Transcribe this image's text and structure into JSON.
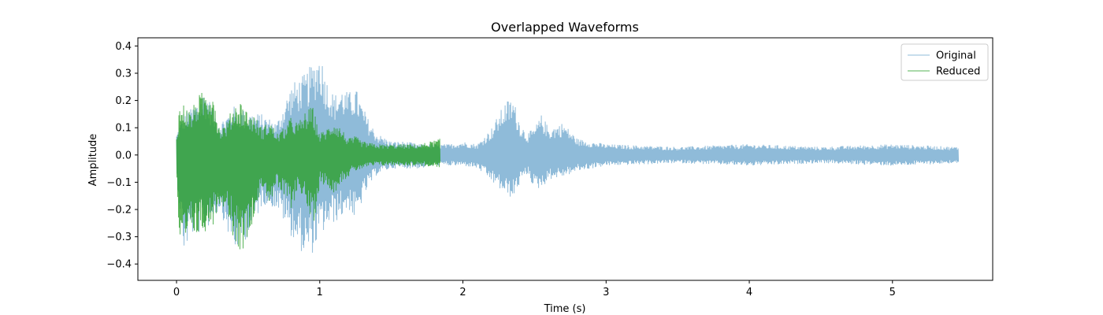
{
  "chart_data": {
    "type": "line",
    "title": "Overlapped Waveforms",
    "xlabel": "Time (s)",
    "ylabel": "Amplitude",
    "xlim": [
      -0.27,
      5.7
    ],
    "ylim": [
      -0.46,
      0.43
    ],
    "x_ticks": [
      0,
      1,
      2,
      3,
      4,
      5
    ],
    "y_ticks": [
      -0.4,
      -0.3,
      -0.2,
      -0.1,
      0.0,
      0.1,
      0.2,
      0.3,
      0.4
    ],
    "x_tick_labels": [
      "0",
      "1",
      "2",
      "3",
      "4",
      "5"
    ],
    "y_tick_labels": [
      "−0.4",
      "−0.3",
      "−0.2",
      "−0.1",
      "0.0",
      "0.1",
      "0.2",
      "0.3",
      "0.4"
    ],
    "grid": false,
    "legend": "top-right",
    "series": [
      {
        "name": "Original",
        "color": "#1f77b4",
        "opacity": 0.5,
        "x_range": [
          0,
          5.46
        ],
        "envelope": {
          "t": [
            0.0,
            0.05,
            0.1,
            0.2,
            0.3,
            0.4,
            0.5,
            0.6,
            0.7,
            0.8,
            0.85,
            0.9,
            0.95,
            1.0,
            1.05,
            1.1,
            1.15,
            1.2,
            1.25,
            1.3,
            1.35,
            1.4,
            1.5,
            1.6,
            1.7,
            1.8,
            1.9,
            2.0,
            2.1,
            2.2,
            2.3,
            2.35,
            2.4,
            2.45,
            2.5,
            2.55,
            2.6,
            2.7,
            2.8,
            2.9,
            3.0,
            3.5,
            4.0,
            4.5,
            5.0,
            5.46
          ],
          "upper": [
            0.08,
            0.16,
            0.17,
            0.24,
            0.12,
            0.18,
            0.16,
            0.15,
            0.12,
            0.26,
            0.28,
            0.3,
            0.34,
            0.39,
            0.28,
            0.22,
            0.25,
            0.23,
            0.25,
            0.18,
            0.12,
            0.08,
            0.05,
            0.05,
            0.04,
            0.04,
            0.04,
            0.05,
            0.04,
            0.1,
            0.2,
            0.21,
            0.12,
            0.08,
            0.1,
            0.15,
            0.1,
            0.12,
            0.06,
            0.05,
            0.04,
            0.03,
            0.04,
            0.03,
            0.04,
            0.03
          ],
          "lower": [
            -0.1,
            -0.36,
            -0.3,
            -0.28,
            -0.2,
            -0.36,
            -0.3,
            -0.18,
            -0.2,
            -0.3,
            -0.34,
            -0.38,
            -0.36,
            -0.3,
            -0.27,
            -0.25,
            -0.23,
            -0.2,
            -0.25,
            -0.16,
            -0.11,
            -0.07,
            -0.05,
            -0.05,
            -0.05,
            -0.04,
            -0.04,
            -0.04,
            -0.05,
            -0.1,
            -0.15,
            -0.16,
            -0.1,
            -0.07,
            -0.13,
            -0.12,
            -0.09,
            -0.08,
            -0.06,
            -0.05,
            -0.04,
            -0.03,
            -0.04,
            -0.03,
            -0.04,
            -0.03
          ]
        }
      },
      {
        "name": "Reduced",
        "color": "#2ca02c",
        "opacity": 0.8,
        "x_range": [
          0,
          1.84
        ],
        "envelope": {
          "t": [
            0.0,
            0.02,
            0.05,
            0.1,
            0.15,
            0.2,
            0.25,
            0.3,
            0.35,
            0.4,
            0.45,
            0.5,
            0.55,
            0.6,
            0.65,
            0.7,
            0.75,
            0.8,
            0.85,
            0.9,
            0.95,
            1.0,
            1.05,
            1.1,
            1.15,
            1.2,
            1.25,
            1.3,
            1.4,
            1.5,
            1.6,
            1.7,
            1.84
          ],
          "upper": [
            0.08,
            0.18,
            0.19,
            0.16,
            0.22,
            0.24,
            0.26,
            0.1,
            0.12,
            0.19,
            0.2,
            0.16,
            0.14,
            0.1,
            0.13,
            0.08,
            0.1,
            0.14,
            0.12,
            0.16,
            0.18,
            0.08,
            0.1,
            0.13,
            0.1,
            0.06,
            0.07,
            0.05,
            0.04,
            0.04,
            0.04,
            0.04,
            0.06
          ],
          "lower": [
            -0.1,
            -0.42,
            -0.36,
            -0.3,
            -0.3,
            -0.28,
            -0.26,
            -0.18,
            -0.2,
            -0.32,
            -0.36,
            -0.3,
            -0.2,
            -0.12,
            -0.18,
            -0.12,
            -0.16,
            -0.2,
            -0.12,
            -0.18,
            -0.28,
            -0.1,
            -0.12,
            -0.14,
            -0.1,
            -0.08,
            -0.06,
            -0.05,
            -0.04,
            -0.04,
            -0.04,
            -0.04,
            -0.05
          ]
        }
      }
    ]
  }
}
